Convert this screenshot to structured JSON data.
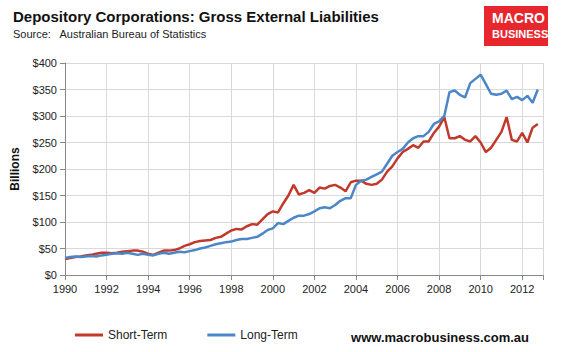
{
  "chart_data": {
    "type": "line",
    "title": "Depository Corporations: Gross External Liabilities",
    "subtitle": "Source:   Australian Bureau of Statistics",
    "ylabel": "Billions",
    "annotations": [
      "MACRO",
      "BUSINESS",
      "www.macrobusiness.com.au"
    ],
    "x": [
      1990,
      1990.25,
      1990.5,
      1990.75,
      1991,
      1991.25,
      1991.5,
      1991.75,
      1992,
      1992.25,
      1992.5,
      1992.75,
      1993,
      1993.25,
      1993.5,
      1993.75,
      1994,
      1994.25,
      1994.5,
      1994.75,
      1995,
      1995.25,
      1995.5,
      1995.75,
      1996,
      1996.25,
      1996.5,
      1996.75,
      1997,
      1997.25,
      1997.5,
      1997.75,
      1998,
      1998.25,
      1998.5,
      1998.75,
      1999,
      1999.25,
      1999.5,
      1999.75,
      2000,
      2000.25,
      2000.5,
      2000.75,
      2001,
      2001.25,
      2001.5,
      2001.75,
      2002,
      2002.25,
      2002.5,
      2002.75,
      2003,
      2003.25,
      2003.5,
      2003.75,
      2004,
      2004.25,
      2004.5,
      2004.75,
      2005,
      2005.25,
      2005.5,
      2005.75,
      2006,
      2006.25,
      2006.5,
      2006.75,
      2007,
      2007.25,
      2007.5,
      2007.75,
      2008,
      2008.25,
      2008.5,
      2008.75,
      2009,
      2009.25,
      2009.5,
      2009.75,
      2010,
      2010.25,
      2010.5,
      2010.75,
      2011,
      2011.25,
      2011.5,
      2011.75,
      2012,
      2012.25,
      2012.5,
      2012.75
    ],
    "series": [
      {
        "name": "Short-Term",
        "color": "#c0392b",
        "values": [
          30,
          32,
          34,
          35,
          37,
          38,
          40,
          42,
          42,
          41,
          42,
          44,
          45,
          46,
          46,
          44,
          40,
          38,
          42,
          46,
          46,
          47,
          50,
          55,
          58,
          62,
          64,
          65,
          66,
          70,
          72,
          78,
          84,
          87,
          86,
          92,
          96,
          95,
          105,
          115,
          120,
          118,
          135,
          150,
          170,
          152,
          155,
          160,
          155,
          165,
          163,
          168,
          170,
          165,
          158,
          175,
          178,
          178,
          172,
          170,
          172,
          180,
          195,
          205,
          220,
          232,
          238,
          245,
          240,
          252,
          252,
          268,
          280,
          298,
          258,
          258,
          262,
          255,
          252,
          262,
          250,
          232,
          240,
          255,
          270,
          298,
          255,
          252,
          268,
          250,
          278,
          285
        ]
      },
      {
        "name": "Long-Term",
        "color": "#4a86c8",
        "values": [
          32,
          34,
          35,
          34,
          35,
          36,
          35,
          37,
          38,
          40,
          41,
          40,
          42,
          40,
          38,
          40,
          38,
          37,
          40,
          42,
          40,
          42,
          44,
          43,
          45,
          47,
          50,
          52,
          55,
          58,
          60,
          62,
          63,
          66,
          68,
          68,
          70,
          72,
          78,
          85,
          88,
          98,
          96,
          102,
          108,
          112,
          112,
          115,
          120,
          126,
          128,
          126,
          132,
          140,
          145,
          145,
          170,
          178,
          180,
          185,
          190,
          195,
          210,
          225,
          232,
          238,
          250,
          258,
          262,
          262,
          270,
          285,
          290,
          300,
          345,
          348,
          340,
          335,
          362,
          370,
          378,
          360,
          342,
          340,
          342,
          348,
          332,
          336,
          330,
          338,
          325,
          350
        ]
      }
    ],
    "xlim": [
      1990,
      2013
    ],
    "xticks": [
      1990,
      1992,
      1994,
      1996,
      1998,
      2000,
      2002,
      2004,
      2006,
      2008,
      2010,
      2012
    ],
    "ylim": [
      0,
      400
    ],
    "yticks": [
      {
        "value": 0,
        "label": "$0"
      },
      {
        "value": 50,
        "label": "$50"
      },
      {
        "value": 100,
        "label": "$100"
      },
      {
        "value": 150,
        "label": "$150"
      },
      {
        "value": 200,
        "label": "$200"
      },
      {
        "value": 250,
        "label": "$250"
      },
      {
        "value": 300,
        "label": "$300"
      },
      {
        "value": 350,
        "label": "$350"
      },
      {
        "value": 400,
        "label": "$400"
      }
    ],
    "grid": true,
    "legend": "bottom-left"
  }
}
